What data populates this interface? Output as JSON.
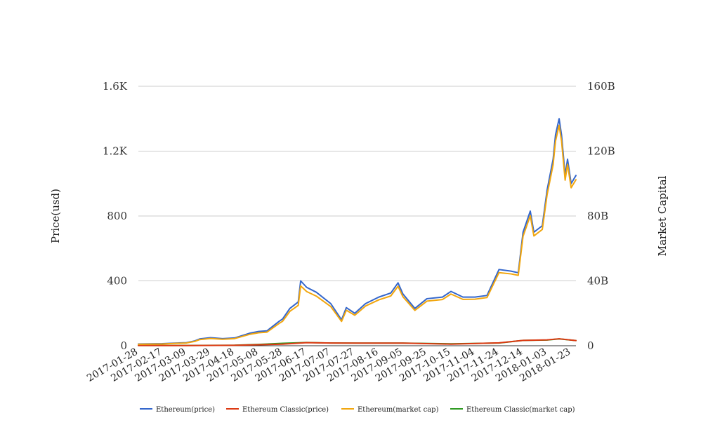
{
  "chart_data": {
    "type": "line",
    "title": "",
    "xlabel": "",
    "ylabel_left": "Price(usd)",
    "ylabel_right": "Market Capital",
    "x_tick_labels": [
      "2017-01-28",
      "2017-02-17",
      "2017-03-09",
      "2017-03-29",
      "2017-04-18",
      "2017-05-08",
      "2017-05-28",
      "2017-06-17",
      "2017-07-07",
      "2017-07-27",
      "2017-08-16",
      "2017-09-05",
      "2017-09-25",
      "2017-10-15",
      "2017-11-04",
      "2017-11-24",
      "2017-12-14",
      "2018-01-03",
      "2018-01-23"
    ],
    "x_range": [
      "2017-01-28",
      "2018-01-27"
    ],
    "y_left": {
      "ticks": [
        0,
        400,
        800,
        1200,
        1600
      ],
      "tick_labels": [
        "0",
        "400",
        "800",
        "1.2K",
        "1.6K"
      ],
      "range": [
        0,
        1600
      ]
    },
    "y_right": {
      "ticks": [
        0,
        40,
        80,
        120,
        160
      ],
      "tick_labels": [
        "0",
        "40B",
        "80B",
        "120B",
        "160B"
      ],
      "range": [
        0,
        160
      ],
      "unit": "B"
    },
    "grid": true,
    "legend_position": "bottom",
    "series": [
      {
        "name": "Ethereum(price)",
        "color": "#3366cc",
        "axis": "left",
        "points": [
          [
            "2017-01-28",
            10.6
          ],
          [
            "2017-02-17",
            12.8
          ],
          [
            "2017-03-01",
            17
          ],
          [
            "2017-03-09",
            19
          ],
          [
            "2017-03-16",
            30
          ],
          [
            "2017-03-20",
            42
          ],
          [
            "2017-03-29",
            50
          ],
          [
            "2017-04-08",
            44
          ],
          [
            "2017-04-18",
            48
          ],
          [
            "2017-05-01",
            78
          ],
          [
            "2017-05-08",
            88
          ],
          [
            "2017-05-15",
            92
          ],
          [
            "2017-05-25",
            150
          ],
          [
            "2017-05-28",
            165
          ],
          [
            "2017-06-03",
            230
          ],
          [
            "2017-06-10",
            270
          ],
          [
            "2017-06-12",
            400
          ],
          [
            "2017-06-17",
            360
          ],
          [
            "2017-06-25",
            330
          ],
          [
            "2017-07-07",
            260
          ],
          [
            "2017-07-16",
            160
          ],
          [
            "2017-07-20",
            235
          ],
          [
            "2017-07-27",
            200
          ],
          [
            "2017-08-05",
            260
          ],
          [
            "2017-08-16",
            300
          ],
          [
            "2017-08-26",
            325
          ],
          [
            "2017-09-01",
            388
          ],
          [
            "2017-09-05",
            320
          ],
          [
            "2017-09-15",
            230
          ],
          [
            "2017-09-25",
            290
          ],
          [
            "2017-10-08",
            300
          ],
          [
            "2017-10-15",
            335
          ],
          [
            "2017-10-25",
            300
          ],
          [
            "2017-11-04",
            300
          ],
          [
            "2017-11-14",
            310
          ],
          [
            "2017-11-24",
            470
          ],
          [
            "2017-12-04",
            460
          ],
          [
            "2017-12-10",
            450
          ],
          [
            "2017-12-14",
            700
          ],
          [
            "2017-12-20",
            830
          ],
          [
            "2017-12-23",
            700
          ],
          [
            "2017-12-30",
            740
          ],
          [
            "2018-01-03",
            960
          ],
          [
            "2018-01-08",
            1150
          ],
          [
            "2018-01-10",
            1300
          ],
          [
            "2018-01-13",
            1400
          ],
          [
            "2018-01-15",
            1300
          ],
          [
            "2018-01-18",
            1050
          ],
          [
            "2018-01-20",
            1150
          ],
          [
            "2018-01-23",
            1000
          ],
          [
            "2018-01-27",
            1050
          ]
        ]
      },
      {
        "name": "Ethereum Classic(price)",
        "color": "#dc3912",
        "axis": "left",
        "points": [
          [
            "2017-01-28",
            1.5
          ],
          [
            "2017-03-09",
            1.3
          ],
          [
            "2017-04-18",
            2.6
          ],
          [
            "2017-05-28",
            10
          ],
          [
            "2017-06-17",
            19
          ],
          [
            "2017-07-07",
            17
          ],
          [
            "2017-08-16",
            16
          ],
          [
            "2017-09-05",
            16
          ],
          [
            "2017-10-15",
            10
          ],
          [
            "2017-11-24",
            18
          ],
          [
            "2017-12-14",
            33
          ],
          [
            "2018-01-03",
            36
          ],
          [
            "2018-01-13",
            43
          ],
          [
            "2018-01-27",
            32
          ]
        ]
      },
      {
        "name": "Ethereum(market cap)",
        "color": "#f1a60e",
        "axis": "right",
        "points": [
          [
            "2017-01-28",
            0.9
          ],
          [
            "2017-02-17",
            1.1
          ],
          [
            "2017-03-01",
            1.5
          ],
          [
            "2017-03-09",
            1.7
          ],
          [
            "2017-03-16",
            2.7
          ],
          [
            "2017-03-20",
            3.8
          ],
          [
            "2017-03-29",
            4.5
          ],
          [
            "2017-04-08",
            4.0
          ],
          [
            "2017-04-18",
            4.4
          ],
          [
            "2017-05-01",
            7.1
          ],
          [
            "2017-05-08",
            8.0
          ],
          [
            "2017-05-15",
            8.4
          ],
          [
            "2017-05-25",
            13.7
          ],
          [
            "2017-05-28",
            15.1
          ],
          [
            "2017-06-03",
            21.2
          ],
          [
            "2017-06-10",
            24.9
          ],
          [
            "2017-06-12",
            36.9
          ],
          [
            "2017-06-17",
            33.4
          ],
          [
            "2017-06-25",
            30.6
          ],
          [
            "2017-07-07",
            24.2
          ],
          [
            "2017-07-16",
            15.0
          ],
          [
            "2017-07-20",
            21.9
          ],
          [
            "2017-07-27",
            18.8
          ],
          [
            "2017-08-05",
            24.5
          ],
          [
            "2017-08-16",
            28.3
          ],
          [
            "2017-08-26",
            30.7
          ],
          [
            "2017-09-01",
            36.7
          ],
          [
            "2017-09-05",
            30.3
          ],
          [
            "2017-09-15",
            21.8
          ],
          [
            "2017-09-25",
            27.5
          ],
          [
            "2017-10-08",
            28.5
          ],
          [
            "2017-10-15",
            31.9
          ],
          [
            "2017-10-25",
            28.6
          ],
          [
            "2017-11-04",
            28.7
          ],
          [
            "2017-11-14",
            29.7
          ],
          [
            "2017-11-24",
            45.1
          ],
          [
            "2017-12-04",
            44.3
          ],
          [
            "2017-12-10",
            43.4
          ],
          [
            "2017-12-14",
            67.5
          ],
          [
            "2017-12-20",
            80.2
          ],
          [
            "2017-12-23",
            67.7
          ],
          [
            "2017-12-30",
            71.7
          ],
          [
            "2018-01-03",
            93.1
          ],
          [
            "2018-01-08",
            111.6
          ],
          [
            "2018-01-10",
            126.2
          ],
          [
            "2018-01-13",
            135.9
          ],
          [
            "2018-01-15",
            126.3
          ],
          [
            "2018-01-18",
            102.1
          ],
          [
            "2018-01-20",
            111.9
          ],
          [
            "2018-01-23",
            97.4
          ],
          [
            "2018-01-27",
            102.4
          ]
        ]
      },
      {
        "name": "Ethereum Classic(market cap)",
        "color": "#2e9a22",
        "axis": "right",
        "points": [
          [
            "2017-01-28",
            0.15
          ],
          [
            "2017-03-09",
            0.14
          ],
          [
            "2017-04-18",
            0.3
          ],
          [
            "2017-05-08",
            0.8
          ],
          [
            "2017-05-28",
            1.5
          ],
          [
            "2017-06-17",
            2.0
          ],
          [
            "2017-07-07",
            1.7
          ],
          [
            "2017-08-16",
            1.6
          ],
          [
            "2017-09-05",
            1.6
          ],
          [
            "2017-10-15",
            1.2
          ],
          [
            "2017-11-24",
            1.7
          ],
          [
            "2017-12-14",
            3.3
          ],
          [
            "2018-01-03",
            3.5
          ],
          [
            "2018-01-13",
            4.2
          ],
          [
            "2018-01-27",
            3.2
          ]
        ]
      }
    ]
  }
}
